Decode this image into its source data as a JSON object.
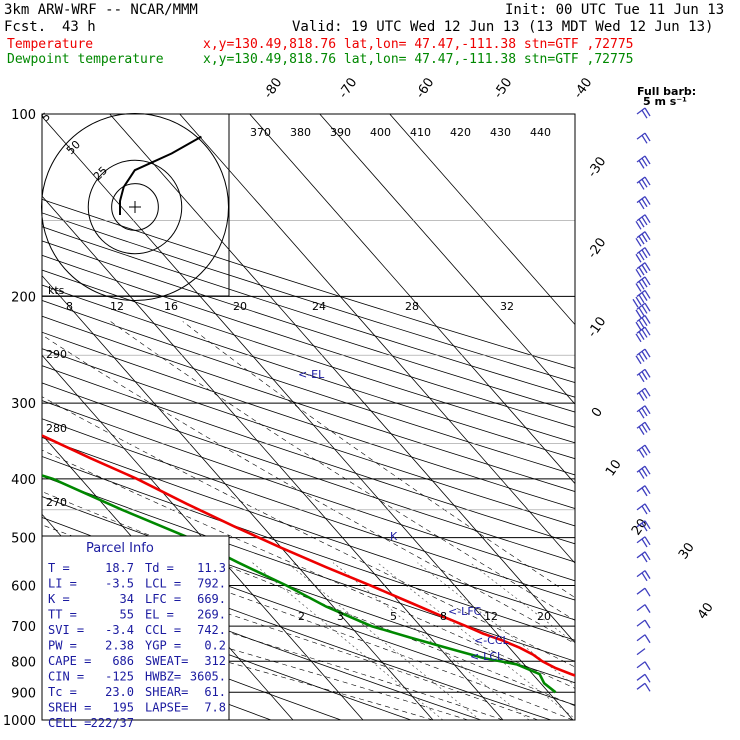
{
  "header": {
    "model": "3km ARW-WRF -- NCAR/MMM",
    "init": "Init: 00 UTC Tue 11 Jun 13",
    "fcst_label": "Fcst.",
    "fcst_value": "43 h",
    "valid": "Valid: 19 UTC Wed 12 Jun 13 (13 MDT Wed 12 Jun 13)",
    "temperature_label": "Temperature",
    "dewpoint_label": "Dewpoint temperature",
    "location": "x,y=130.49,818.76   lat,lon= 47.47,-111.38   stn=GTF ,72775"
  },
  "colors": {
    "temperature": "#ee0000",
    "dewpoint": "#008800",
    "annotation": "#1a1aa0",
    "isotherm": "#000000"
  },
  "chart_data": {
    "type": "skew-t",
    "title": "",
    "pressure_ticks": [
      "100",
      "200",
      "300",
      "400",
      "500",
      "600",
      "700",
      "800",
      "900",
      "1000"
    ],
    "isotherm_labels": [
      "-80",
      "-70",
      "-60",
      "-50",
      "-40",
      "-30",
      "-20",
      "-10",
      "0",
      "10",
      "20",
      "30",
      "40"
    ],
    "theta_labels": [
      "370",
      "380",
      "390",
      "400",
      "410",
      "420",
      "430",
      "440"
    ],
    "mixing_ratio_labels": [
      "8",
      "12",
      "16",
      "20",
      "24",
      "28",
      "32"
    ],
    "mixing_ratio_labels_low": [
      "2",
      "3",
      "5",
      "8",
      "12",
      "20"
    ],
    "moist_adiabat_labels": [
      "290",
      "280",
      "270"
    ],
    "series": [
      {
        "name": "Temperature",
        "color": "#ee0000",
        "points": [
          [
            900,
            22
          ],
          [
            870,
            18
          ],
          [
            840,
            15.5
          ],
          [
            820,
            14
          ],
          [
            800,
            13
          ],
          [
            780,
            12.5
          ],
          [
            760,
            11.5
          ],
          [
            740,
            10
          ],
          [
            720,
            8
          ],
          [
            700,
            6.5
          ],
          [
            670,
            4
          ],
          [
            640,
            1.5
          ],
          [
            600,
            -2
          ],
          [
            560,
            -6
          ],
          [
            520,
            -10
          ],
          [
            480,
            -14
          ],
          [
            440,
            -18
          ],
          [
            400,
            -22
          ],
          [
            370,
            -26
          ],
          [
            340,
            -30
          ],
          [
            310,
            -35
          ],
          [
            280,
            -40
          ],
          [
            260,
            -44
          ],
          [
            240,
            -48
          ],
          [
            220,
            -52
          ],
          [
            200,
            -53
          ],
          [
            180,
            -55
          ],
          [
            160,
            -57
          ],
          [
            140,
            -60
          ],
          [
            120,
            -61
          ],
          [
            100,
            -60
          ]
        ]
      },
      {
        "name": "Dewpoint temperature",
        "color": "#008800",
        "points": [
          [
            900,
            11
          ],
          [
            870,
            10.5
          ],
          [
            840,
            11
          ],
          [
            810,
            9
          ],
          [
            790,
            5
          ],
          [
            760,
            1
          ],
          [
            730,
            -3
          ],
          [
            700,
            -7
          ],
          [
            650,
            -11
          ],
          [
            600,
            -14
          ],
          [
            550,
            -18
          ],
          [
            500,
            -22
          ],
          [
            450,
            -28
          ],
          [
            400,
            -34
          ],
          [
            370,
            -41
          ],
          [
            340,
            -46
          ],
          [
            310,
            -50
          ],
          [
            290,
            -52
          ],
          [
            260,
            -56
          ],
          [
            230,
            -60
          ],
          [
            200,
            -64
          ],
          [
            180,
            -66
          ],
          [
            170,
            -66
          ],
          [
            150,
            -64
          ],
          [
            130,
            -60
          ],
          [
            100,
            -56
          ]
        ]
      }
    ],
    "annotations": [
      "<-EL",
      "K",
      "<-LFC",
      "<-CCL",
      "<-LCL"
    ],
    "hodograph": {
      "units_label": "kts",
      "rings": [
        "5",
        "25",
        "50"
      ],
      "points": [
        [
          0,
          0
        ],
        [
          0,
          5
        ],
        [
          1,
          10
        ],
        [
          4,
          16
        ],
        [
          9,
          19
        ],
        [
          14,
          22
        ],
        [
          18,
          25
        ],
        [
          22,
          28
        ]
      ]
    },
    "wind_barb_scale": {
      "title": "Full barb:",
      "value": "5 m s⁻¹"
    },
    "wind_barbs": [
      {
        "p": 100,
        "speed_ms": 10
      },
      {
        "p": 110,
        "speed_ms": 12
      },
      {
        "p": 120,
        "speed_ms": 14
      },
      {
        "p": 130,
        "speed_ms": 15
      },
      {
        "p": 140,
        "speed_ms": 16
      },
      {
        "p": 150,
        "speed_ms": 18
      },
      {
        "p": 160,
        "speed_ms": 20
      },
      {
        "p": 170,
        "speed_ms": 20
      },
      {
        "p": 180,
        "speed_ms": 22
      },
      {
        "p": 190,
        "speed_ms": 22
      },
      {
        "p": 200,
        "speed_ms": 24
      },
      {
        "p": 210,
        "speed_ms": 22
      },
      {
        "p": 220,
        "speed_ms": 20
      },
      {
        "p": 230,
        "speed_ms": 20
      },
      {
        "p": 250,
        "speed_ms": 18
      },
      {
        "p": 270,
        "speed_ms": 17
      },
      {
        "p": 290,
        "speed_ms": 16
      },
      {
        "p": 310,
        "speed_ms": 15
      },
      {
        "p": 330,
        "speed_ms": 14
      },
      {
        "p": 360,
        "speed_ms": 14
      },
      {
        "p": 390,
        "speed_ms": 13
      },
      {
        "p": 420,
        "speed_ms": 12
      },
      {
        "p": 450,
        "speed_ms": 12
      },
      {
        "p": 480,
        "speed_ms": 11
      },
      {
        "p": 510,
        "speed_ms": 10
      },
      {
        "p": 540,
        "speed_ms": 9
      },
      {
        "p": 580,
        "speed_ms": 8
      },
      {
        "p": 620,
        "speed_ms": 7
      },
      {
        "p": 660,
        "speed_ms": 5
      },
      {
        "p": 700,
        "speed_ms": 4
      },
      {
        "p": 740,
        "speed_ms": 3
      },
      {
        "p": 780,
        "speed_ms": 2
      },
      {
        "p": 820,
        "speed_ms": 4
      },
      {
        "p": 860,
        "speed_ms": 5
      },
      {
        "p": 890,
        "speed_ms": 6
      }
    ]
  },
  "parcel_info": {
    "title": "Parcel Info",
    "rows": [
      [
        "T  =",
        "18.7",
        "Td =",
        "11.3"
      ],
      [
        "LI =",
        "-3.5",
        "LCL =",
        "792."
      ],
      [
        "K  =",
        "34",
        "LFC =",
        "669."
      ],
      [
        "TT =",
        "55",
        "EL  =",
        "269."
      ],
      [
        "SVI =",
        "-3.4",
        "CCL =",
        "742."
      ],
      [
        "PW =",
        "2.38",
        "YGP =",
        "0.2"
      ],
      [
        "CAPE =",
        "686",
        "SWEAT=",
        "312"
      ],
      [
        "CIN =",
        "-125",
        "HWBZ=",
        "3605."
      ],
      [
        "Tc =",
        "23.0",
        "SHEAR=",
        "61."
      ],
      [
        "SREH =",
        "195",
        "LAPSE=",
        "7.8"
      ],
      [
        "CELL =",
        "222/37",
        "",
        ""
      ]
    ]
  }
}
